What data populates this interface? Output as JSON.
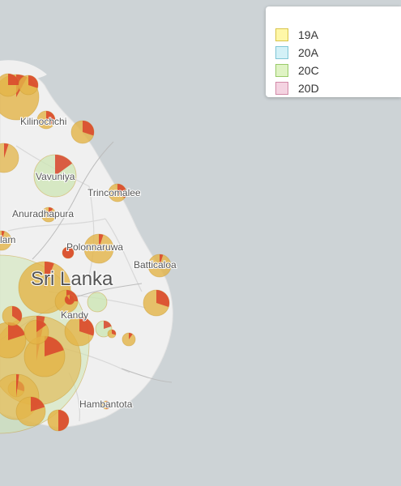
{
  "legend": {
    "items": [
      {
        "label": "19A",
        "fill": "#fff7a8",
        "border": "#d8c44a"
      },
      {
        "label": "20A",
        "fill": "#d3f1f7",
        "border": "#7fc6d6"
      },
      {
        "label": "20C",
        "fill": "#dff3c4",
        "border": "#9acb6a"
      },
      {
        "label": "20D",
        "fill": "#f4d3e1",
        "border": "#d28aa8"
      }
    ]
  },
  "places": {
    "kilinochchi": "Kilinochchi",
    "vavuniya": "Vavuniya",
    "trincomalee": "Trincomalee",
    "anuradhapura": "Anuradhapura",
    "polonnaruwa": "Polonnaruwa",
    "batticaloa": "Batticaloa",
    "country": "Sri Lanka",
    "kandy": "Kandy",
    "hambantota": "Hambantota",
    "puttalam_partial": "lam"
  },
  "colors": {
    "sea": "#cdd3d6",
    "land": "#f0f0f0",
    "circle_19A": "#e3b447",
    "circle_20C": "#cde6b4",
    "circle_20A": "#bfe3ec",
    "circle_20D": "#efc7d6",
    "slice": "#d9432c"
  }
}
